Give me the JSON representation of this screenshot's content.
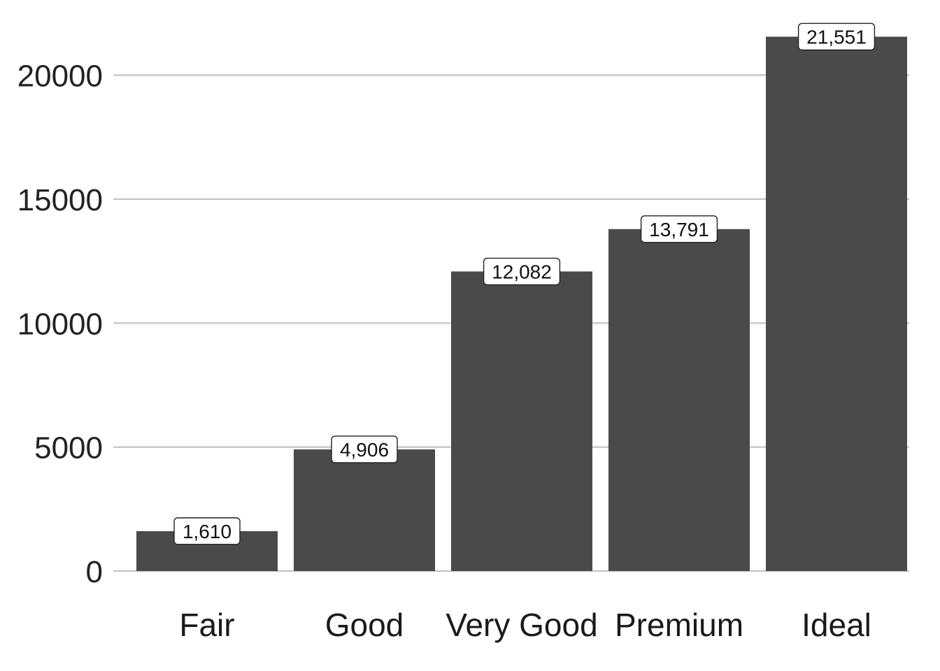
{
  "chart_data": {
    "type": "bar",
    "title": "",
    "xlabel": "",
    "ylabel": "",
    "categories": [
      "Fair",
      "Good",
      "Very Good",
      "Premium",
      "Ideal"
    ],
    "values": [
      1610,
      4906,
      12082,
      13791,
      21551
    ],
    "data_labels": [
      "1,610",
      "4,906",
      "12,082",
      "13,791",
      "21,551"
    ],
    "yticks": [
      0,
      5000,
      10000,
      15000,
      20000
    ],
    "ytick_labels": [
      "0",
      "5000",
      "10000",
      "15000",
      "20000"
    ],
    "ylim": [
      0,
      22000
    ],
    "grid": "horizontal",
    "legend": "none",
    "colors": {
      "bar": "#4a4a4a",
      "grid": "#c4c4c4",
      "label_background": "#ffffff"
    }
  }
}
